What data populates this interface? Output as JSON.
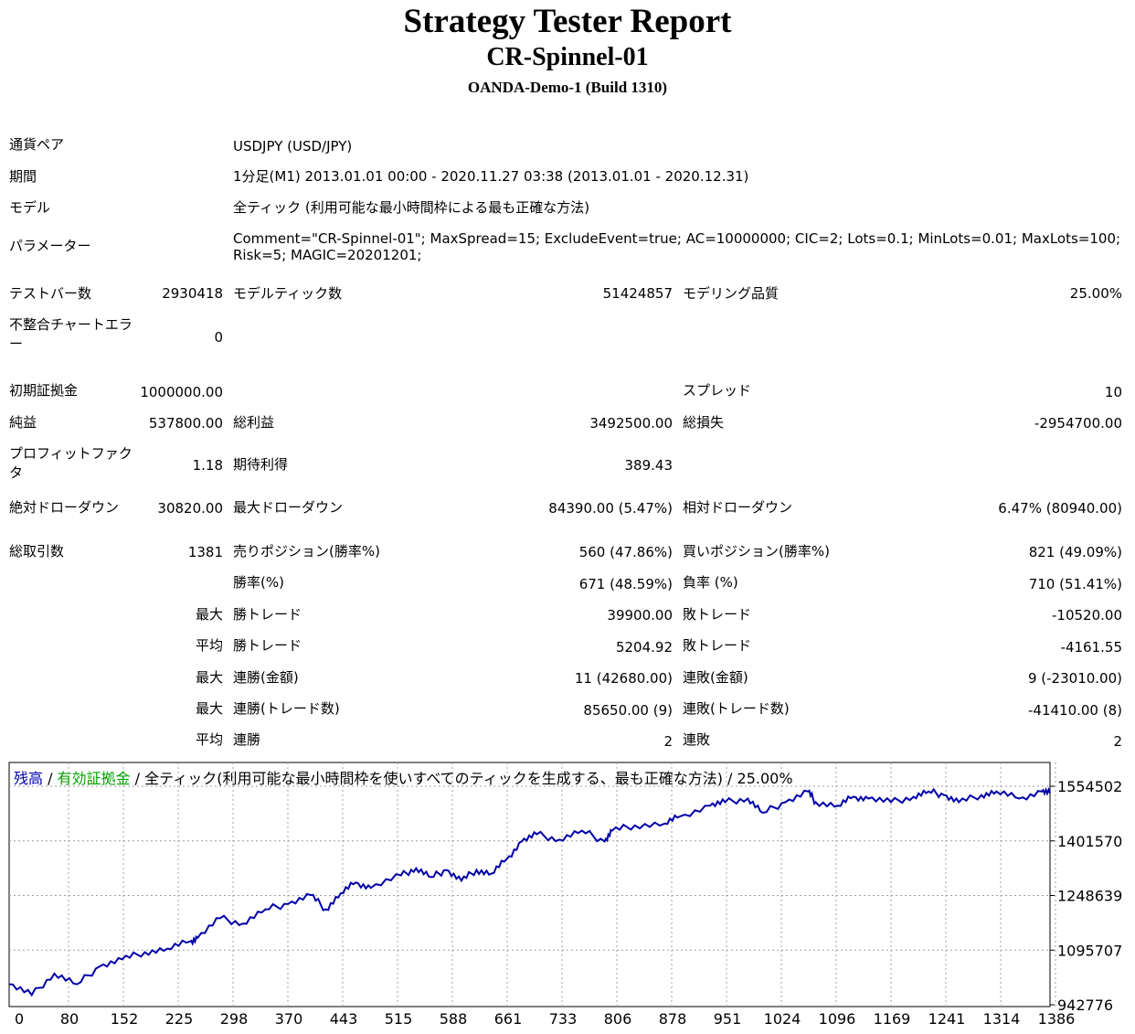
{
  "header": {
    "title": "Strategy Tester Report",
    "ea_name": "CR-Spinnel-01",
    "server": "OANDA-Demo-1 (Build 1310)"
  },
  "info": {
    "symbol_label": "通貨ペア",
    "symbol_value": "USDJPY (USD/JPY)",
    "period_label": "期間",
    "period_value": "1分足(M1) 2013.01.01 00:00 - 2020.11.27 03:38 (2013.01.01 - 2020.12.31)",
    "model_label": "モデル",
    "model_value": "全ティック (利用可能な最小時間枠による最も正確な方法)",
    "params_label": "パラメーター",
    "params_line1": "Comment=\"CR-Spinnel-01\"; MaxSpread=15; ExcludeEvent=true; AC=10000000; CIC=2; Lots=0.1; MinLots=0.01; MaxLots=100;",
    "params_line2": "Risk=5; MAGIC=20201201;"
  },
  "stats": {
    "bars_label": "テストバー数",
    "bars_value": "2930418",
    "ticks_label": "モデルティック数",
    "ticks_value": "51424857",
    "quality_label": "モデリング品質",
    "quality_value": "25.00%",
    "mismatch_label": "不整合チャートエラー",
    "mismatch_value": "0",
    "deposit_label": "初期証拠金",
    "deposit_value": "1000000.00",
    "spread_label": "スプレッド",
    "spread_value": "10",
    "net_label": "純益",
    "net_value": "537800.00",
    "gross_profit_label": "総利益",
    "gross_profit_value": "3492500.00",
    "gross_loss_label": "総損失",
    "gross_loss_value": "-2954700.00",
    "pf_label": "プロフィットファクタ",
    "pf_value": "1.18",
    "payoff_label": "期待利得",
    "payoff_value": "389.43",
    "abs_dd_label": "絶対ドローダウン",
    "abs_dd_value": "30820.00",
    "max_dd_label": "最大ドローダウン",
    "max_dd_value": "84390.00 (5.47%)",
    "rel_dd_label": "相対ドローダウン",
    "rel_dd_value": "6.47% (80940.00)",
    "trades_label": "総取引数",
    "trades_value": "1381",
    "short_label": "売りポジション(勝率%)",
    "short_value": "560 (47.86%)",
    "long_label": "買いポジション(勝率%)",
    "long_value": "821 (49.09%)",
    "win_label": "勝率(%)",
    "win_value": "671 (48.59%)",
    "loss_label": "負率 (%)",
    "loss_value": "710 (51.41%)",
    "largest_label": "最大",
    "largest_win_label": "勝トレード",
    "largest_win_value": "39900.00",
    "largest_loss_label": "敗トレード",
    "largest_loss_value": "-10520.00",
    "average_label": "平均",
    "average_win_label": "勝トレード",
    "average_win_value": "5204.92",
    "average_loss_label": "敗トレード",
    "average_loss_value": "-4161.55",
    "max1_label": "最大",
    "max_consec_wins_label": "連勝(金額)",
    "max_consec_wins_value": "11 (42680.00)",
    "max_consec_losses_label": "連敗(金額)",
    "max_consec_losses_value": "9 (-23010.00)",
    "max2_label": "最大",
    "max_consec_profit_label": "連勝(トレード数)",
    "max_consec_profit_value": "85650.00 (9)",
    "max_consec_loss_label": "連敗(トレード数)",
    "max_consec_loss_value": "-41410.00 (8)",
    "avg_label": "平均",
    "avg_consec_wins_label": "連勝",
    "avg_consec_wins_value": "2",
    "avg_consec_losses_label": "連敗",
    "avg_consec_losses_value": "2"
  },
  "chart_data": {
    "type": "line",
    "legend": {
      "balance": "残高",
      "sep1": " / ",
      "equity": "有効証拠金",
      "sep2": " / ",
      "rest": "全ティック(利用可能な最小時間枠を使いすべてのティックを生成する、最も正確な方法) / 25.00%"
    },
    "x_ticks": [
      "0",
      "80",
      "152",
      "225",
      "298",
      "370",
      "443",
      "515",
      "588",
      "661",
      "733",
      "806",
      "878",
      "951",
      "1024",
      "1096",
      "1169",
      "1241",
      "1314",
      "1386"
    ],
    "y_ticks": [
      "1554502",
      "1401570",
      "1248639",
      "1095707",
      "942776"
    ],
    "ylim": [
      942776,
      1554502
    ],
    "xlim": [
      0,
      1381
    ],
    "series": [
      {
        "color": "#0000a8",
        "x": [
          0,
          30,
          60,
          90,
          120,
          150,
          180,
          210,
          240,
          250,
          280,
          310,
          340,
          370,
          400,
          420,
          440,
          460,
          480,
          520,
          540,
          560,
          580,
          600,
          620,
          640,
          660,
          680,
          700,
          730,
          760,
          790,
          800,
          830,
          870,
          890,
          930,
          950,
          980,
          1000,
          1030,
          1060,
          1070,
          1100,
          1120,
          1140,
          1170,
          1200,
          1220,
          1240,
          1260,
          1290,
          1310,
          1340,
          1370,
          1381
        ],
        "y": [
          1000000,
          970000,
          1030000,
          1000000,
          1050000,
          1070000,
          1090000,
          1100000,
          1120000,
          1130000,
          1185000,
          1170000,
          1210000,
          1225000,
          1250000,
          1210000,
          1255000,
          1285000,
          1270000,
          1305000,
          1325000,
          1300000,
          1320000,
          1290000,
          1320000,
          1310000,
          1350000,
          1400000,
          1420000,
          1405000,
          1430000,
          1400000,
          1430000,
          1445000,
          1450000,
          1470000,
          1500000,
          1510000,
          1520000,
          1480000,
          1510000,
          1540000,
          1510000,
          1500000,
          1525000,
          1520000,
          1510000,
          1525000,
          1540000,
          1530000,
          1510000,
          1530000,
          1540000,
          1520000,
          1540000,
          1535000
        ]
      }
    ]
  }
}
